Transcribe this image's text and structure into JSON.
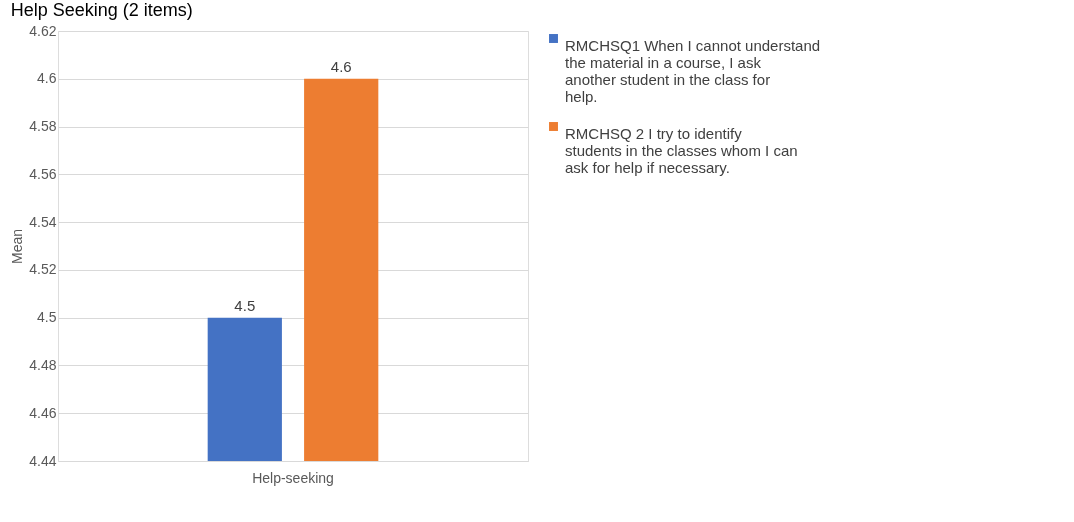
{
  "chart_data": {
    "type": "bar",
    "title": "Help Seeking (2 items)",
    "ylabel": "Mean",
    "categories": [
      "Help-seeking"
    ],
    "series": [
      {
        "name": "RMCHSQ1 When I cannot understand the material in a course, I ask another student in the class for help.",
        "color": "#4472c4",
        "values": [
          4.5
        ]
      },
      {
        "name": "RMCHSQ 2 I try to identify students in the classes whom I can ask for help if necessary.",
        "color": "#ed7d31",
        "values": [
          4.6
        ]
      }
    ],
    "ylim": [
      4.44,
      4.62
    ],
    "yticks": [
      4.44,
      4.46,
      4.48,
      4.5,
      4.52,
      4.54,
      4.56,
      4.58,
      4.6,
      4.62
    ],
    "grid": "y",
    "legend": "right",
    "data_labels": true
  }
}
